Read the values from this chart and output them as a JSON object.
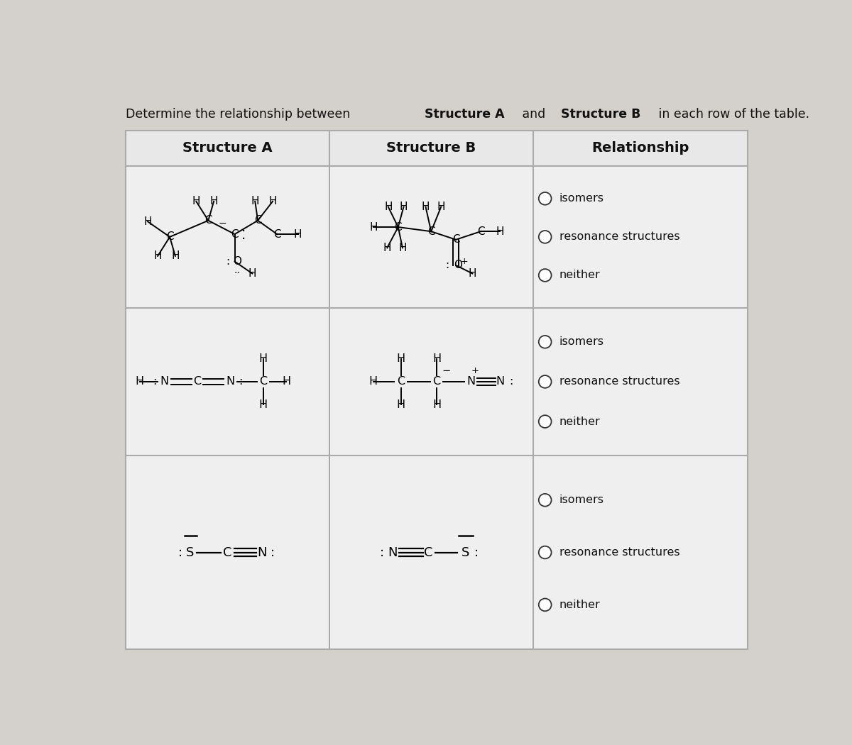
{
  "title_normal": "Determine the relationship between ",
  "title_bold1": "Structure A",
  "title_mid": " and ",
  "title_bold2": "Structure B",
  "title_end": " in each row of the table.",
  "col_headers": [
    "Structure A",
    "Structure B",
    "Relationship"
  ],
  "bg_color": "#d4d0cb",
  "table_bg": "#efefef",
  "header_bg": "#e8e8e8",
  "border_color": "#aaaaaa",
  "text_color": "#111111",
  "radio_options": [
    "isomers",
    "resonance structures",
    "neither"
  ],
  "figsize": [
    12.0,
    10.5
  ],
  "dpi": 100
}
